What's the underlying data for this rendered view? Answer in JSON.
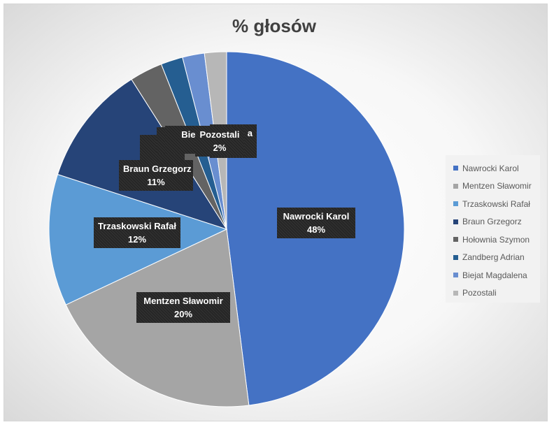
{
  "chart_data": {
    "type": "pie",
    "title": "% głosów",
    "categories": [
      "Nawrocki Karol",
      "Mentzen Sławomir",
      "Trzaskowski Rafał",
      "Braun Grzegorz",
      "Hołownia Szymon",
      "Zandberg Adrian",
      "Biejat Magdalena",
      "Pozostali"
    ],
    "values": [
      48,
      20,
      12,
      11,
      3,
      2,
      2,
      2
    ],
    "value_labels": [
      "48%",
      "20%",
      "12%",
      "11%",
      "",
      "",
      "",
      "2%"
    ],
    "colors": [
      "#4472c4",
      "#a5a5a5",
      "#5b9bd5",
      "#264478",
      "#636363",
      "#255e91",
      "#698ed0",
      "#b7b7b7"
    ],
    "legend": "right",
    "overlapping_labels": [
      "Ho",
      "Z",
      "Biejat",
      "a"
    ]
  }
}
